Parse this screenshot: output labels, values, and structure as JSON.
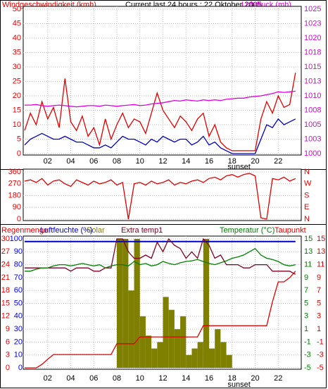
{
  "chart_data": [
    {
      "type": "line",
      "title": "Current last 24 hours : 22 Oktober 2005",
      "y_label": "Windgeschwindigkeit (kmh)",
      "y2_label": "Luftdruck (mb)",
      "x": [
        0,
        0.5,
        1,
        1.5,
        2,
        2.5,
        3,
        3.5,
        4,
        4.5,
        5,
        5.5,
        6,
        6.5,
        7,
        7.5,
        8,
        8.5,
        9,
        9.5,
        10,
        10.5,
        11,
        11.5,
        12,
        12.5,
        13,
        13.5,
        14,
        14.5,
        15,
        15.5,
        16,
        16.5,
        17,
        17.5,
        18,
        18.5,
        19,
        19.5,
        20,
        20.5,
        21,
        21.5,
        22,
        22.5,
        23,
        23.5
      ],
      "xlim": [
        0,
        24
      ],
      "xticks": [
        {
          "value": 2,
          "label": "02"
        },
        {
          "value": 4,
          "label": "04"
        },
        {
          "value": 6,
          "label": "06"
        },
        {
          "value": 8,
          "label": "08"
        },
        10,
        12,
        14,
        16,
        18,
        20,
        22
      ],
      "ylim": [
        0,
        50
      ],
      "yticks": [
        0,
        5,
        10,
        15,
        20,
        25,
        30,
        35,
        40,
        45,
        50
      ],
      "ycolor": "#e00000",
      "y2lim": [
        1000,
        1025
      ],
      "y2ticks": [
        1000,
        {
          "value": 1002.5,
          "label": "1003"
        },
        1005,
        {
          "value": 1007.5,
          "label": "1008"
        },
        1010,
        {
          "value": 1012.5,
          "label": "1013"
        },
        1015,
        {
          "value": 1017.5,
          "label": "1018"
        },
        1020,
        {
          "value": 1022.5,
          "label": "1023"
        },
        1025
      ],
      "y2color": "#e000e0",
      "grid": true,
      "annotations": [
        {
          "text": "sunset",
          "x": 18.6
        }
      ],
      "series": [
        {
          "color": "#e00000",
          "values": [
            8,
            14,
            10,
            18,
            12,
            16,
            9,
            26,
            11,
            8,
            13,
            6,
            9,
            3,
            12,
            5,
            10,
            14,
            9,
            12,
            11,
            7,
            14,
            21,
            15,
            12,
            9,
            13,
            11,
            8,
            12,
            14,
            6,
            10,
            4,
            2,
            1,
            1,
            1,
            1,
            1,
            12,
            18,
            14,
            20,
            16,
            17,
            28
          ]
        },
        {
          "color": "#0000c0",
          "values": [
            3,
            5,
            6,
            7,
            6,
            5,
            5,
            6,
            5,
            4,
            4,
            3,
            2,
            2,
            3,
            2,
            4,
            6,
            5,
            5,
            4,
            3,
            5,
            4,
            6,
            5,
            4,
            5,
            5,
            3,
            4,
            6,
            3,
            4,
            2,
            1,
            0,
            0,
            0,
            0,
            0,
            5,
            10,
            9,
            12,
            10,
            11,
            12
          ]
        },
        {
          "color": "#e000e0",
          "axis": "y2",
          "values": [
            1008.4,
            1008.4,
            1008.5,
            1008.3,
            1008.2,
            1008.3,
            1008.4,
            1008.3,
            1008.2,
            1008.1,
            1008.2,
            1008.3,
            1008.3,
            1008.2,
            1008.4,
            1008.3,
            1008.2,
            1008.3,
            1008.4,
            1008.5,
            1008.3,
            1008.4,
            1008.6,
            1008.7,
            1008.8,
            1009.0,
            1009.2,
            1009.1,
            1009.3,
            1009.2,
            1009.1,
            1009.3,
            1009.2,
            1009.3,
            1009.2,
            1009.4,
            1009.5,
            1009.6,
            1009.6,
            1009.8,
            1009.9,
            1010.0,
            1010.2,
            1010.4,
            1010.7,
            1010.6,
            1010.7,
            1010.8
          ]
        }
      ]
    },
    {
      "type": "line",
      "x": [
        0,
        0.5,
        1,
        1.5,
        2,
        2.5,
        3,
        3.5,
        4,
        4.5,
        5,
        5.5,
        6,
        6.5,
        7,
        7.5,
        8,
        8.5,
        9,
        9.5,
        10,
        10.5,
        11,
        11.5,
        12,
        12.5,
        13,
        13.5,
        14,
        14.5,
        15,
        15.5,
        16,
        16.5,
        17,
        17.5,
        18,
        18.5,
        19,
        19.5,
        20,
        20.5,
        21,
        21.5,
        22,
        22.5,
        23,
        23.5
      ],
      "xlim": [
        0,
        24
      ],
      "ylim": [
        0,
        360
      ],
      "yticks": [
        0,
        90,
        180,
        270,
        360
      ],
      "ycolor": "#e00000",
      "y2lim": [
        0,
        360
      ],
      "y2ticks": [
        {
          "value": 0,
          "label": "N"
        },
        {
          "value": 90,
          "label": "E"
        },
        {
          "value": 180,
          "label": "S"
        },
        {
          "value": 270,
          "label": "W"
        },
        {
          "value": 360,
          "label": "N"
        }
      ],
      "y2color": "#e00000",
      "grid": true,
      "series": [
        {
          "color": "#e00000",
          "values": [
            290,
            300,
            280,
            310,
            260,
            290,
            300,
            270,
            250,
            300,
            280,
            260,
            290,
            270,
            280,
            300,
            260,
            280,
            0,
            270,
            280,
            260,
            290,
            270,
            280,
            300,
            260,
            280,
            270,
            290,
            300,
            280,
            310,
            320,
            300,
            330,
            340,
            320,
            340,
            350,
            330,
            10,
            0,
            310,
            300,
            320,
            290,
            310
          ]
        }
      ]
    },
    {
      "type": "line",
      "y4_label": "Taupunkt",
      "x": [
        0,
        0.5,
        1,
        1.5,
        2,
        2.5,
        3,
        3.5,
        4,
        4.5,
        5,
        5.5,
        6,
        6.5,
        7,
        7.5,
        8,
        8.5,
        9,
        9.5,
        10,
        10.5,
        11,
        11.5,
        12,
        12.5,
        13,
        13.5,
        14,
        14.5,
        15,
        15.5,
        16,
        16.5,
        17,
        17.5,
        18,
        18.5,
        19,
        19.5,
        20,
        20.5,
        21,
        21.5,
        22,
        22.5,
        23,
        23.5
      ],
      "xlim": [
        0,
        24
      ],
      "xticks": [
        {
          "value": 2,
          "label": "02"
        },
        {
          "value": 4,
          "label": "04"
        },
        {
          "value": 6,
          "label": "06"
        },
        {
          "value": 8,
          "label": "08"
        },
        10,
        12,
        14,
        16,
        18,
        20,
        22
      ],
      "ylim": [
        0,
        30
      ],
      "yticks": [
        0,
        3,
        6,
        9,
        12,
        15,
        18,
        21,
        24,
        27,
        30
      ],
      "ycolor": "#e00000",
      "y3lim": [
        0,
        100
      ],
      "y3ticks": [
        0,
        10,
        20,
        30,
        40,
        50,
        60,
        70,
        80,
        90,
        100
      ],
      "y3color": "#0000e0",
      "y2lim": [
        -5,
        15
      ],
      "y2ticks": [
        -5,
        -3,
        -1,
        1,
        3,
        5,
        7,
        9,
        11,
        13,
        15
      ],
      "y2color": "#008000",
      "y4lim": [
        -5,
        15
      ],
      "y4ticks": [
        -5,
        -3,
        -1,
        1,
        3,
        5,
        7,
        9,
        11,
        13,
        15
      ],
      "y4color": "#e00000",
      "grid": true,
      "annotations": [
        {
          "text": "sunset",
          "x": 18.6
        }
      ],
      "series": [
        {
          "name": "Solar",
          "type": "bar",
          "axis": "y3",
          "color": "#808000",
          "values": [
            0,
            0,
            0,
            0,
            0,
            0,
            0,
            0,
            0,
            0,
            0,
            0,
            0,
            0,
            0,
            0,
            100,
            100,
            60,
            100,
            40,
            25,
            15,
            20,
            55,
            45,
            30,
            40,
            10,
            15,
            20,
            100,
            15,
            30,
            20,
            10,
            0,
            0,
            0,
            0,
            0,
            0,
            0,
            0,
            0,
            0,
            0,
            0
          ]
        },
        {
          "name": "Luftfeuchte (%)",
          "axis": "y3",
          "color": "#0000c0",
          "values": [
            98,
            98,
            98,
            98,
            98,
            98,
            98,
            98,
            98,
            98,
            98,
            98,
            98,
            98,
            98,
            98,
            98,
            98,
            98,
            98,
            98,
            98,
            98,
            98,
            98,
            98,
            98,
            98,
            98,
            98,
            98,
            98,
            98,
            98,
            98,
            98,
            98,
            98,
            98,
            98,
            98,
            98,
            98,
            98,
            98,
            98,
            98,
            98
          ]
        },
        {
          "name": "Extra temp1",
          "axis": "y2",
          "color": "#800020",
          "values": [
            10.5,
            10.5,
            10.5,
            10.5,
            10.5,
            10.5,
            10.5,
            10.5,
            10,
            10.5,
            10.5,
            10.5,
            10,
            10,
            10.5,
            10.5,
            15,
            15,
            13,
            12,
            12,
            12.5,
            12,
            14.5,
            13,
            15,
            14,
            13.5,
            12,
            13,
            12,
            15,
            14,
            12,
            12.5,
            11,
            11,
            11,
            10.5,
            10.5,
            11,
            11,
            11,
            10,
            10,
            10,
            10,
            9.5
          ]
        },
        {
          "name": "Temperatur (°C)",
          "axis": "y2",
          "color": "#008000",
          "values": [
            10,
            10,
            10.3,
            10.5,
            10.5,
            10.8,
            11,
            11,
            10.8,
            11,
            11.2,
            11,
            10.8,
            11,
            10.5,
            10.8,
            11,
            11,
            10.8,
            11.5,
            11,
            11.2,
            10.8,
            11,
            11.5,
            11.2,
            11,
            11.3,
            11.5,
            11.6,
            11.8,
            11.5,
            11.2,
            11,
            11.3,
            11.6,
            12,
            12.2,
            12.5,
            13,
            13.5,
            12.5,
            12,
            11.8,
            11.5,
            11,
            10.8,
            11
          ]
        },
        {
          "name": "Regenmenge",
          "color": "#e00000",
          "values": [
            0,
            0,
            0,
            0.8,
            2,
            3.1,
            3.1,
            3.1,
            3.1,
            3.1,
            3.1,
            3.1,
            3.1,
            3.1,
            3.1,
            3.1,
            5.6,
            5.6,
            5.6,
            5.6,
            7.2,
            7.2,
            7.2,
            7.2,
            7.2,
            7.2,
            7.2,
            7.2,
            7.2,
            7.2,
            7.2,
            9.8,
            9.8,
            9.8,
            9.8,
            9.8,
            9.8,
            9.8,
            9.8,
            9.8,
            9.8,
            9.8,
            9.8,
            15.4,
            20,
            20,
            21,
            22.5
          ]
        }
      ]
    }
  ]
}
